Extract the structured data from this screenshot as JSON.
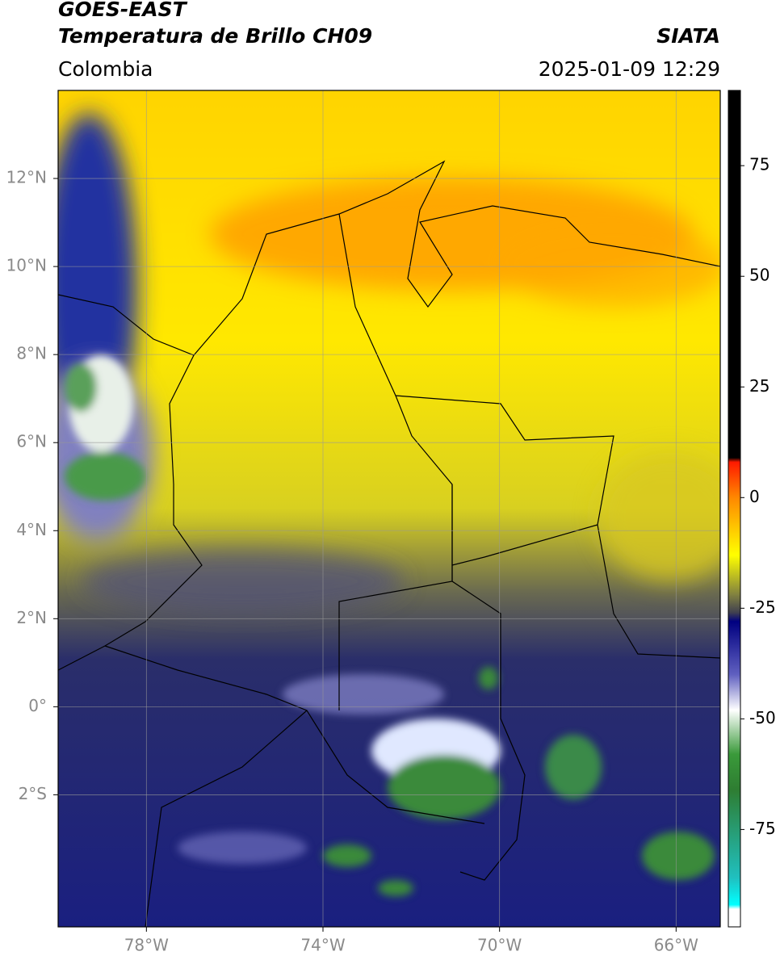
{
  "header": {
    "title": "GOES-EAST",
    "subtitle": "Temperatura de Brillo CH09",
    "source": "SIATA",
    "region": "Colombia",
    "timestamp": "2025-01-09 12:29"
  },
  "map": {
    "xlim": [
      -80,
      -65
    ],
    "ylim": [
      -5,
      14
    ],
    "xticks": [
      {
        "value": -78,
        "label": "78°W"
      },
      {
        "value": -74,
        "label": "74°W"
      },
      {
        "value": -70,
        "label": "70°W"
      },
      {
        "value": -66,
        "label": "66°W"
      }
    ],
    "yticks": [
      {
        "value": 12,
        "label": "12°N"
      },
      {
        "value": 10,
        "label": "10°N"
      },
      {
        "value": 8,
        "label": "8°N"
      },
      {
        "value": 6,
        "label": "6°N"
      },
      {
        "value": 4,
        "label": "4°N"
      },
      {
        "value": 2,
        "label": "2°N"
      },
      {
        "value": 0,
        "label": "0°"
      },
      {
        "value": -2,
        "label": "2°S"
      }
    ],
    "grid": true
  },
  "colorbar": {
    "lim": [
      -97,
      92
    ],
    "ticks": [
      75,
      50,
      25,
      0,
      -25,
      -50,
      -75
    ],
    "stops": [
      {
        "value": 92,
        "color": "#000000"
      },
      {
        "value": 9,
        "color": "#000000"
      },
      {
        "value": 8,
        "color": "#ff1a00"
      },
      {
        "value": 0,
        "color": "#ff8800"
      },
      {
        "value": -13,
        "color": "#ffff00"
      },
      {
        "value": -22,
        "color": "#808040"
      },
      {
        "value": -26,
        "color": "#404050"
      },
      {
        "value": -28,
        "color": "#000080"
      },
      {
        "value": -40,
        "color": "#6060c0"
      },
      {
        "value": -48,
        "color": "#ffffff"
      },
      {
        "value": -58,
        "color": "#3a9a3a"
      },
      {
        "value": -66,
        "color": "#2e7d32"
      },
      {
        "value": -86,
        "color": "#20c0c0"
      },
      {
        "value": -92,
        "color": "#00ffff"
      },
      {
        "value": -93,
        "color": "#ffffff"
      },
      {
        "value": -97,
        "color": "#ffffff"
      }
    ]
  }
}
